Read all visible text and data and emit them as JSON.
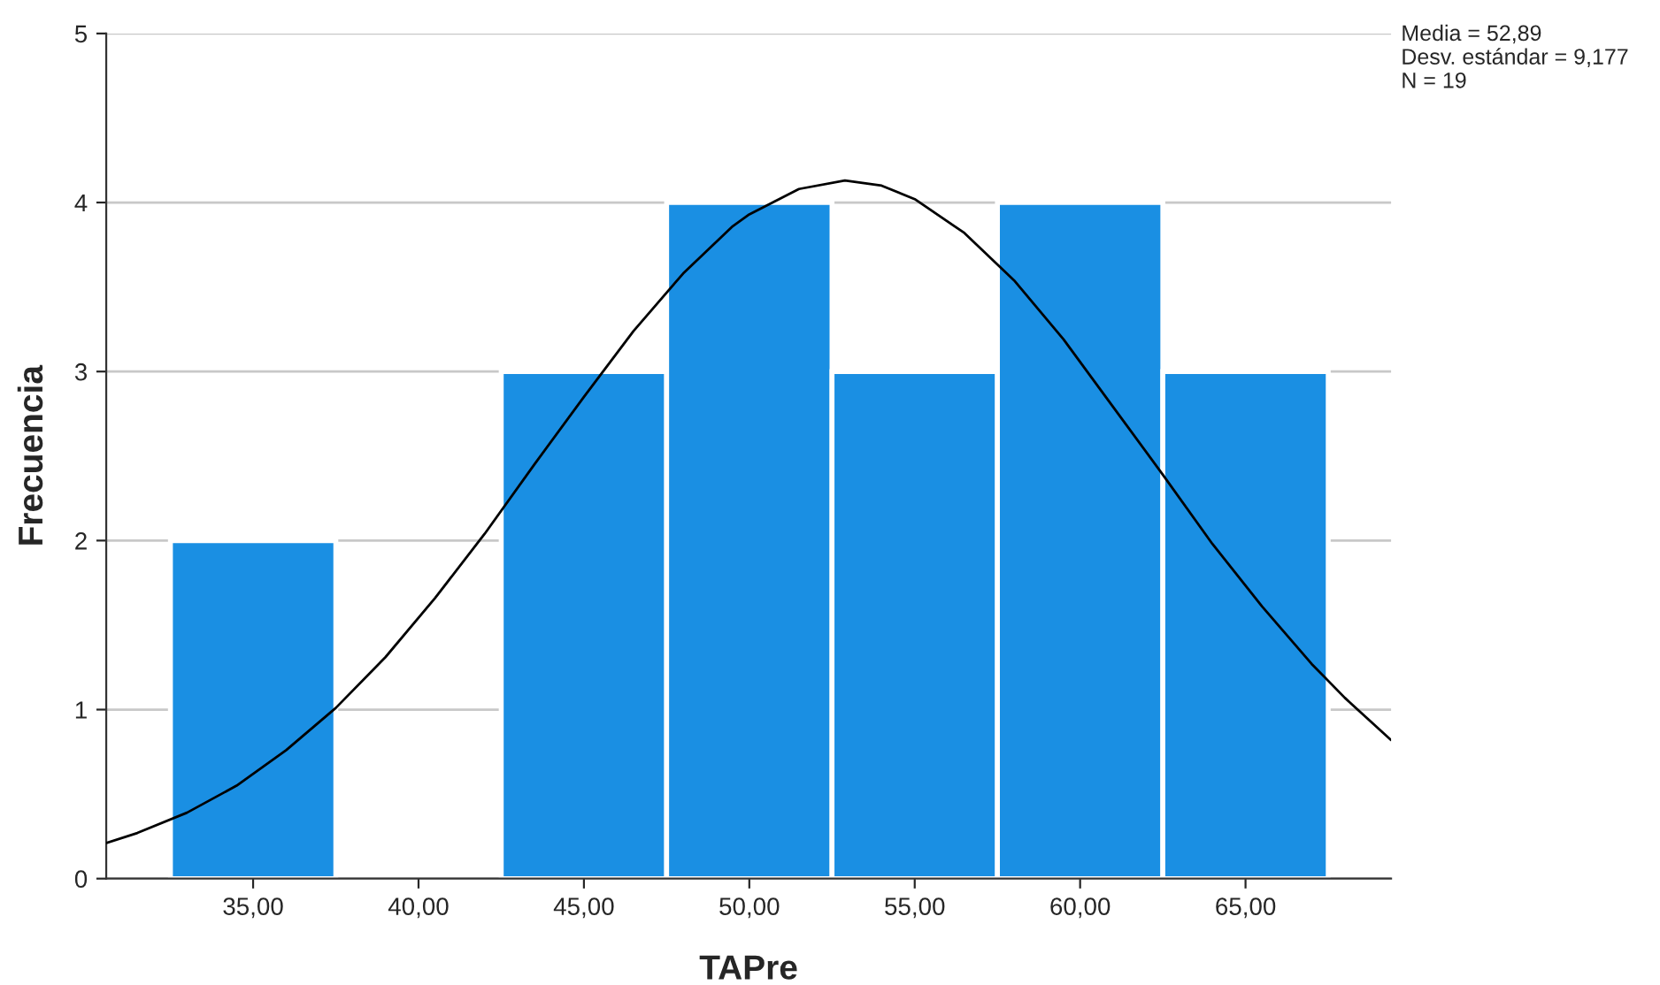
{
  "chart_data": {
    "type": "histogram",
    "xlabel": "TAPre",
    "ylabel": "Frecuencia",
    "bins": [
      32.5,
      37.5,
      42.5,
      47.5,
      52.5,
      57.5,
      62.5,
      67.5
    ],
    "values": [
      2,
      0,
      3,
      4,
      3,
      4,
      3
    ],
    "color": "#1a8fe3",
    "series": [
      {
        "type": "line",
        "color": "#000000",
        "x": [
          30.56,
          31.5,
          33,
          34.5,
          36,
          37.5,
          39,
          40.5,
          42,
          43.5,
          45,
          46.5,
          48,
          49.5,
          50,
          51.5,
          52.89,
          54,
          55,
          56.5,
          58,
          59.5,
          61,
          62.5,
          64,
          65.5,
          67,
          68,
          69.4
        ],
        "values": [
          0.21,
          0.27,
          0.39,
          0.55,
          0.76,
          1.01,
          1.31,
          1.66,
          2.04,
          2.45,
          2.85,
          3.24,
          3.58,
          3.86,
          3.93,
          4.08,
          4.13,
          4.1,
          4.02,
          3.82,
          3.54,
          3.19,
          2.79,
          2.39,
          1.98,
          1.61,
          1.27,
          1.07,
          0.82
        ]
      }
    ],
    "xlim": [
      30.56,
      69.4
    ],
    "xticks": [
      {
        "value": 35,
        "label": "35,00"
      },
      {
        "value": 40,
        "label": "40,00"
      },
      {
        "value": 45,
        "label": "45,00"
      },
      {
        "value": 50,
        "label": "50,00"
      },
      {
        "value": 55,
        "label": "55,00"
      },
      {
        "value": 60,
        "label": "60,00"
      },
      {
        "value": 65,
        "label": "65,00"
      }
    ],
    "ylim": [
      0,
      5
    ],
    "yticks": [
      0,
      1,
      2,
      3,
      4,
      5
    ],
    "grid": "y",
    "annotations": [
      "Media = 52,89",
      "Desv. estándar = 9,177",
      "N = 19"
    ]
  }
}
